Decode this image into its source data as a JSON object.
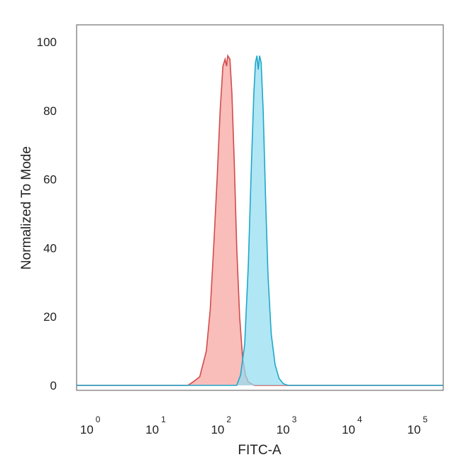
{
  "chart_data": {
    "type": "area",
    "title": "",
    "xlabel": "FITC-A",
    "ylabel": "Normalized To Mode",
    "x_scale": "log",
    "xlim": [
      0.5,
      200000
    ],
    "ylim": [
      0,
      105
    ],
    "x_ticks": [
      {
        "base": "10",
        "exp": "0",
        "value": 1
      },
      {
        "base": "10",
        "exp": "1",
        "value": 10
      },
      {
        "base": "10",
        "exp": "2",
        "value": 100
      },
      {
        "base": "10",
        "exp": "3",
        "value": 1000
      },
      {
        "base": "10",
        "exp": "4",
        "value": 10000
      },
      {
        "base": "10",
        "exp": "5",
        "value": 100000
      }
    ],
    "y_ticks": [
      "0",
      "20",
      "40",
      "60",
      "80",
      "100"
    ],
    "grid": false,
    "series": [
      {
        "color": "#d24b4b",
        "fill": "#f7a3a0",
        "points": [
          [
            0.5,
            0
          ],
          [
            25,
            0
          ],
          [
            30,
            1
          ],
          [
            38,
            2.5
          ],
          [
            48,
            10
          ],
          [
            55,
            22
          ],
          [
            62,
            40
          ],
          [
            70,
            60
          ],
          [
            78,
            80
          ],
          [
            86,
            93
          ],
          [
            93,
            95
          ],
          [
            98,
            93
          ],
          [
            102,
            96
          ],
          [
            110,
            95
          ],
          [
            118,
            85
          ],
          [
            128,
            65
          ],
          [
            140,
            40
          ],
          [
            155,
            20
          ],
          [
            172,
            8
          ],
          [
            190,
            3
          ],
          [
            210,
            1
          ],
          [
            260,
            0
          ],
          [
            200000,
            0
          ]
        ]
      },
      {
        "color": "#1fa8c9",
        "fill": "#93dcf1",
        "points": [
          [
            0.5,
            0
          ],
          [
            140,
            0
          ],
          [
            160,
            3
          ],
          [
            185,
            12
          ],
          [
            210,
            35
          ],
          [
            235,
            65
          ],
          [
            255,
            85
          ],
          [
            270,
            94
          ],
          [
            285,
            96
          ],
          [
            298,
            92
          ],
          [
            312,
            96
          ],
          [
            330,
            94
          ],
          [
            355,
            80
          ],
          [
            385,
            55
          ],
          [
            420,
            32
          ],
          [
            470,
            15
          ],
          [
            540,
            6
          ],
          [
            620,
            2
          ],
          [
            720,
            0.5
          ],
          [
            850,
            0
          ],
          [
            200000,
            0
          ]
        ]
      }
    ]
  }
}
